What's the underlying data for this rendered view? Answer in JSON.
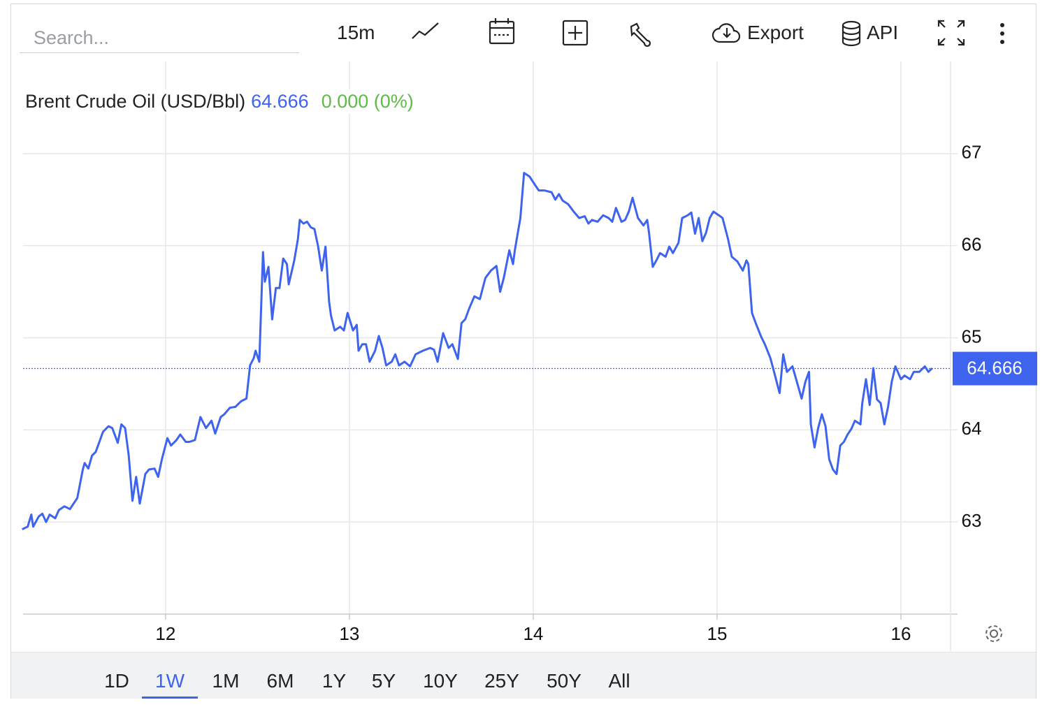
{
  "toolbar": {
    "search_placeholder": "Search...",
    "interval": "15m",
    "export": "Export",
    "api": "API"
  },
  "ranges": [
    {
      "label": "1D",
      "selected": false
    },
    {
      "label": "1W",
      "selected": true
    },
    {
      "label": "1M",
      "selected": false
    },
    {
      "label": "6M",
      "selected": false
    },
    {
      "label": "1Y",
      "selected": false
    },
    {
      "label": "5Y",
      "selected": false
    },
    {
      "label": "10Y",
      "selected": false
    },
    {
      "label": "25Y",
      "selected": false
    },
    {
      "label": "50Y",
      "selected": false
    },
    {
      "label": "All",
      "selected": false
    }
  ],
  "chart_data": {
    "type": "line",
    "last_value": 64.666,
    "change": "0.000 (0%)",
    "xlim": [
      11.225,
      16.27
    ],
    "xticks": [
      12,
      13,
      14,
      15,
      16
    ],
    "ylim": [
      62,
      68
    ],
    "yticks": [
      63,
      64,
      65,
      66,
      67
    ],
    "grid": true,
    "x": [
      11.22,
      11.25,
      11.27,
      11.28,
      11.31,
      11.33,
      11.35,
      11.37,
      11.4,
      11.42,
      11.45,
      11.48,
      11.5,
      11.52,
      11.55,
      11.56,
      11.58,
      11.6,
      11.62,
      11.64,
      11.66,
      11.69,
      11.71,
      11.74,
      11.76,
      11.78,
      11.8,
      11.82,
      11.84,
      11.86,
      11.89,
      11.91,
      11.94,
      11.96,
      11.98,
      12.01,
      12.03,
      12.06,
      12.08,
      12.11,
      12.13,
      12.16,
      12.19,
      12.22,
      12.25,
      12.27,
      12.3,
      12.32,
      12.35,
      12.38,
      12.41,
      12.44,
      12.46,
      12.48,
      12.49,
      12.51,
      12.53,
      12.54,
      12.56,
      12.58,
      12.6,
      12.62,
      12.64,
      12.66,
      12.67,
      12.7,
      12.72,
      12.73,
      12.75,
      12.77,
      12.79,
      12.81,
      12.83,
      12.85,
      12.87,
      12.89,
      12.9,
      12.92,
      12.95,
      12.97,
      12.99,
      13.02,
      13.04,
      13.05,
      13.07,
      13.09,
      13.11,
      13.14,
      13.16,
      13.18,
      13.2,
      13.23,
      13.25,
      13.27,
      13.3,
      13.33,
      13.36,
      13.4,
      13.44,
      13.46,
      13.48,
      13.51,
      13.54,
      13.56,
      13.59,
      13.61,
      13.63,
      13.65,
      13.68,
      13.71,
      13.74,
      13.77,
      13.8,
      13.82,
      13.84,
      13.87,
      13.89,
      13.9,
      13.93,
      13.95,
      13.98,
      14.01,
      14.03,
      14.06,
      14.1,
      14.12,
      14.14,
      14.16,
      14.19,
      14.22,
      14.25,
      14.28,
      14.3,
      14.32,
      14.35,
      14.38,
      14.41,
      14.43,
      14.45,
      14.48,
      14.5,
      14.52,
      14.54,
      14.57,
      14.6,
      14.62,
      14.63,
      14.65,
      14.67,
      14.69,
      14.72,
      14.74,
      14.76,
      14.79,
      14.81,
      14.84,
      14.86,
      14.88,
      14.9,
      14.92,
      14.94,
      14.96,
      14.98,
      15.01,
      15.03,
      15.06,
      15.08,
      15.11,
      15.14,
      15.16,
      15.17,
      15.19,
      15.21,
      15.24,
      15.26,
      15.29,
      15.31,
      15.34,
      15.36,
      15.38,
      15.41,
      15.43,
      15.46,
      15.48,
      15.5,
      15.51,
      15.53,
      15.55,
      15.57,
      15.59,
      15.61,
      15.63,
      15.65,
      15.67,
      15.69,
      15.71,
      15.73,
      15.75,
      15.78,
      15.79,
      15.81,
      15.83,
      15.85,
      15.87,
      15.89,
      15.91,
      15.93,
      15.95,
      15.97,
      16.0,
      16.02,
      16.05,
      16.07,
      16.1,
      16.13,
      16.15,
      16.17
    ],
    "series": [
      {
        "name": "Brent Crude Oil (USD/Bbl)",
        "color": "#3d63ef",
        "values": [
          62.92,
          62.95,
          63.08,
          62.95,
          63.06,
          63.09,
          63.0,
          63.08,
          63.04,
          63.13,
          63.17,
          63.14,
          63.2,
          63.26,
          63.57,
          63.64,
          63.58,
          63.72,
          63.76,
          63.87,
          63.98,
          64.04,
          64.02,
          63.86,
          64.06,
          64.02,
          63.72,
          63.23,
          63.49,
          63.2,
          63.52,
          63.57,
          63.58,
          63.49,
          63.68,
          63.91,
          63.83,
          63.89,
          63.95,
          63.87,
          63.87,
          63.89,
          64.14,
          64.02,
          64.1,
          63.96,
          64.14,
          64.17,
          64.24,
          64.25,
          64.31,
          64.34,
          64.7,
          64.78,
          64.86,
          64.74,
          65.93,
          65.61,
          65.77,
          65.2,
          65.54,
          65.54,
          65.86,
          65.8,
          65.58,
          65.84,
          66.07,
          66.28,
          66.24,
          66.26,
          66.2,
          66.18,
          65.99,
          65.73,
          65.99,
          65.39,
          65.24,
          65.08,
          65.12,
          65.08,
          65.27,
          65.08,
          65.14,
          64.86,
          64.93,
          64.93,
          64.74,
          64.86,
          65.02,
          64.89,
          64.7,
          64.74,
          64.82,
          64.7,
          64.74,
          64.69,
          64.82,
          64.86,
          64.89,
          64.87,
          64.74,
          65.05,
          64.89,
          64.93,
          64.77,
          65.16,
          65.2,
          65.31,
          65.45,
          65.42,
          65.65,
          65.73,
          65.78,
          65.5,
          65.65,
          65.95,
          65.8,
          65.95,
          66.3,
          66.79,
          66.75,
          66.66,
          66.6,
          66.6,
          66.58,
          66.5,
          66.56,
          66.49,
          66.45,
          66.37,
          66.3,
          66.32,
          66.24,
          66.28,
          66.26,
          66.33,
          66.3,
          66.26,
          66.41,
          66.26,
          66.28,
          66.37,
          66.52,
          66.3,
          66.22,
          66.28,
          66.14,
          65.77,
          65.84,
          65.92,
          65.88,
          65.99,
          65.92,
          66.03,
          66.3,
          66.33,
          66.36,
          66.13,
          66.3,
          66.05,
          66.14,
          66.3,
          66.37,
          66.33,
          66.3,
          66.07,
          65.88,
          65.83,
          65.73,
          65.84,
          65.8,
          65.27,
          65.16,
          65.01,
          64.93,
          64.78,
          64.63,
          64.4,
          64.82,
          64.63,
          64.69,
          64.55,
          64.34,
          64.52,
          64.63,
          64.06,
          63.81,
          64.02,
          64.17,
          64.04,
          63.68,
          63.57,
          63.52,
          63.83,
          63.87,
          63.95,
          64.01,
          64.1,
          64.06,
          64.29,
          64.55,
          64.27,
          64.67,
          64.33,
          64.29,
          64.06,
          64.25,
          64.52,
          64.69,
          64.55,
          64.59,
          64.55,
          64.63,
          64.63,
          64.69,
          64.63,
          64.67
        ]
      }
    ]
  }
}
